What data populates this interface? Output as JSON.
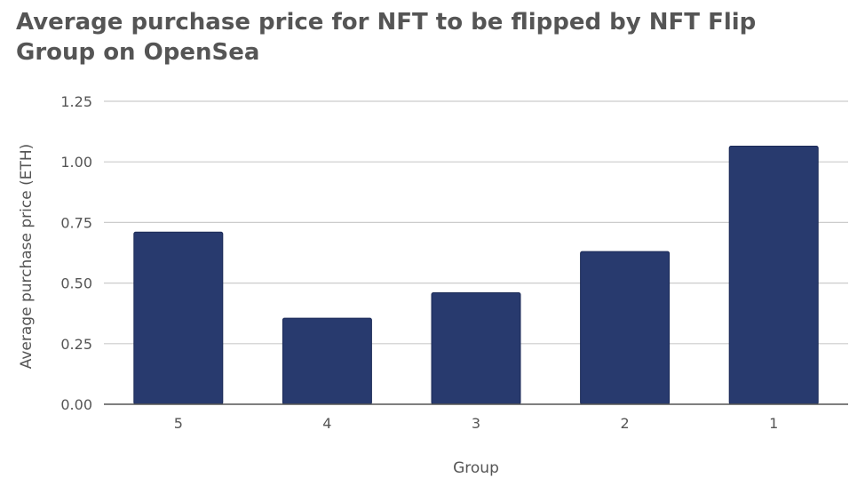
{
  "chart_data": {
    "type": "bar",
    "title": "Average purchase price for NFT to be flipped by NFT Flip Group on OpenSea",
    "xlabel": "Group",
    "ylabel": "Average purchase price (ETH)",
    "categories": [
      "5",
      "4",
      "3",
      "2",
      "1"
    ],
    "values": [
      0.71,
      0.355,
      0.46,
      0.63,
      1.065
    ],
    "ylim": [
      0,
      1.25
    ],
    "yticks": [
      "0.00",
      "0.25",
      "0.50",
      "0.75",
      "1.00",
      "1.25"
    ],
    "grid": true,
    "colors": {
      "bar": "#283a6e",
      "grid": "#cccccc",
      "axis": "#555555",
      "text": "#555555"
    }
  }
}
